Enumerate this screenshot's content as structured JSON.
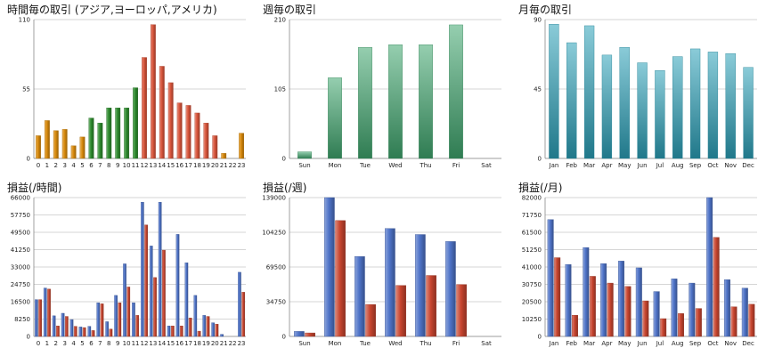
{
  "colors": {
    "hour_early": "#d98a0c",
    "hour_day": "#2e8b2e",
    "hour_peak": "#d9553b",
    "weekday_green": "#3fa56d",
    "month_teal": "#2aa0b8",
    "profit_blue": "#4e73c8",
    "loss_red": "#c8452f"
  },
  "chart_data": [
    {
      "type": "bar",
      "title": "時間毎の取引 (アジア,ヨーロッパ,アメリカ)",
      "categories": [
        "0",
        "1",
        "2",
        "3",
        "4",
        "5",
        "6",
        "7",
        "8",
        "9",
        "10",
        "11",
        "12",
        "13",
        "14",
        "15",
        "16",
        "17",
        "18",
        "19",
        "20",
        "21",
        "22",
        "23"
      ],
      "values": [
        18,
        30,
        22,
        23,
        10,
        17,
        32,
        28,
        40,
        40,
        40,
        56,
        80,
        106,
        73,
        60,
        44,
        42,
        36,
        28,
        18,
        4,
        0,
        20
      ],
      "ylim": [
        0,
        110
      ],
      "yticks": [
        "0",
        "55",
        "110"
      ],
      "grid": true,
      "legend": "none"
    },
    {
      "type": "bar",
      "title": "週毎の取引",
      "categories": [
        "Sun",
        "Mon",
        "Tue",
        "Wed",
        "Thu",
        "Fri",
        "Sat"
      ],
      "values": [
        10,
        122,
        168,
        172,
        172,
        202,
        0
      ],
      "ylim": [
        0,
        210
      ],
      "yticks": [
        "0",
        "105",
        "210"
      ],
      "grid": true,
      "legend": "none"
    },
    {
      "type": "bar",
      "title": "月毎の取引",
      "categories": [
        "Jan",
        "Feb",
        "Mar",
        "Apr",
        "May",
        "Jun",
        "Jul",
        "Aug",
        "Sep",
        "Oct",
        "Nov",
        "Dec"
      ],
      "values": [
        87,
        75,
        86,
        67,
        72,
        62,
        57,
        66,
        71,
        69,
        68,
        59
      ],
      "ylim": [
        0,
        90
      ],
      "yticks": [
        "0",
        "45",
        "90"
      ],
      "grid": true,
      "legend": "none"
    },
    {
      "type": "bar",
      "title": "損益(/時間)",
      "categories": [
        "0",
        "1",
        "2",
        "3",
        "4",
        "5",
        "6",
        "7",
        "8",
        "9",
        "10",
        "11",
        "12",
        "13",
        "14",
        "15",
        "16",
        "17",
        "18",
        "19",
        "20",
        "21",
        "22",
        "23"
      ],
      "series": [
        {
          "values": [
            17500,
            23000,
            9800,
            11000,
            8000,
            4500,
            4800,
            16000,
            7000,
            19500,
            34500,
            16000,
            63800,
            43000,
            63800,
            5000,
            48500,
            35000,
            19500,
            10000,
            6500,
            1000,
            0,
            30500
          ]
        },
        {
          "values": [
            17500,
            22500,
            5000,
            9500,
            4800,
            4200,
            2800,
            15500,
            3500,
            16000,
            23500,
            10000,
            53000,
            28000,
            41000,
            5000,
            5000,
            8800,
            2500,
            9500,
            5800,
            0,
            0,
            21000
          ]
        }
      ],
      "ylim": [
        0,
        66000
      ],
      "yticks": [
        "0",
        "8250",
        "16500",
        "24750",
        "33000",
        "41250",
        "49500",
        "57750",
        "66000"
      ],
      "grid": true,
      "legend": "none"
    },
    {
      "type": "bar",
      "title": "損益(/週)",
      "categories": [
        "Sun",
        "Mon",
        "Tue",
        "Wed",
        "Thu",
        "Fri",
        "Sat"
      ],
      "series": [
        {
          "values": [
            5000,
            139000,
            80000,
            108000,
            102000,
            95000,
            0
          ]
        },
        {
          "values": [
            3500,
            116000,
            32000,
            51000,
            61000,
            52000,
            0
          ]
        }
      ],
      "ylim": [
        0,
        139000
      ],
      "yticks": [
        "0",
        "34750",
        "69500",
        "104250",
        "139000"
      ],
      "grid": true,
      "legend": "none"
    },
    {
      "type": "bar",
      "title": "損益(/月)",
      "categories": [
        "Jan",
        "Feb",
        "Mar",
        "Apr",
        "May",
        "Jun",
        "Jul",
        "Aug",
        "Sep",
        "Oct",
        "Nov",
        "Dec"
      ],
      "series": [
        {
          "values": [
            69000,
            42500,
            52500,
            43000,
            44500,
            40500,
            26500,
            34000,
            31500,
            82000,
            33500,
            28500
          ]
        },
        {
          "values": [
            46500,
            12500,
            35500,
            31500,
            29500,
            21000,
            10500,
            13500,
            16500,
            58500,
            17500,
            19000
          ]
        }
      ],
      "ylim": [
        0,
        82000
      ],
      "yticks": [
        "0",
        "10250",
        "20500",
        "30750",
        "41000",
        "51250",
        "61500",
        "71750",
        "82000"
      ],
      "grid": true,
      "legend": "none"
    }
  ]
}
